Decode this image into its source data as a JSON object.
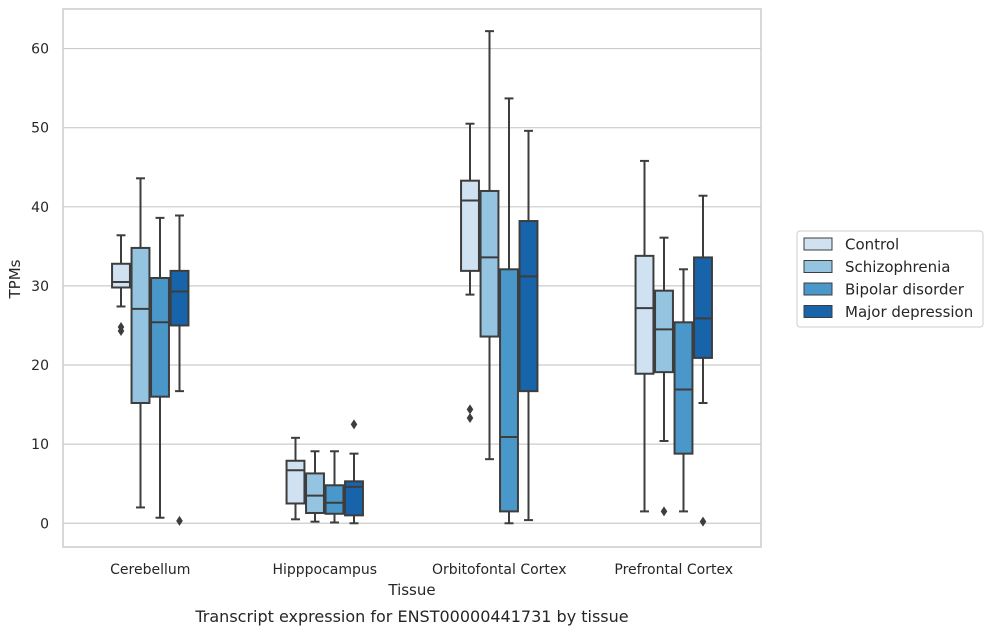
{
  "caption": "Transcript expression for ENST00000441731 by tissue",
  "chart_data": {
    "type": "boxplot",
    "xlabel": "Tissue",
    "ylabel": "TPMs",
    "ylim": [
      -3,
      65
    ],
    "yticks": [
      0,
      10,
      20,
      30,
      40,
      50,
      60
    ],
    "grid": "horizontal",
    "legend_position": "right",
    "categories": [
      "Cerebellum",
      "Hipppocampus",
      "Orbitofontal Cortex",
      "Prefrontal Cortex"
    ],
    "series": [
      {
        "name": "Control",
        "color": "#d0e1f2",
        "boxes": [
          {
            "whislo": 27.4,
            "q1": 29.8,
            "med": 30.5,
            "q3": 32.8,
            "whishi": 36.4,
            "fliers": [
              24.3,
              24.8
            ]
          },
          {
            "whislo": 0.5,
            "q1": 2.5,
            "med": 6.7,
            "q3": 7.9,
            "whishi": 10.8,
            "fliers": []
          },
          {
            "whislo": 28.9,
            "q1": 31.9,
            "med": 40.8,
            "q3": 43.3,
            "whishi": 50.5,
            "fliers": [
              13.3,
              14.4
            ]
          },
          {
            "whislo": 1.5,
            "q1": 18.9,
            "med": 27.2,
            "q3": 33.8,
            "whishi": 45.8,
            "fliers": []
          }
        ]
      },
      {
        "name": "Schizophrenia",
        "color": "#94c4df",
        "boxes": [
          {
            "whislo": 2.0,
            "q1": 15.2,
            "med": 27.1,
            "q3": 34.8,
            "whishi": 43.6,
            "fliers": []
          },
          {
            "whislo": 0.2,
            "q1": 1.3,
            "med": 3.5,
            "q3": 6.3,
            "whishi": 9.1,
            "fliers": []
          },
          {
            "whislo": 8.1,
            "q1": 23.6,
            "med": 33.6,
            "q3": 42.0,
            "whishi": 62.2,
            "fliers": []
          },
          {
            "whislo": 10.4,
            "q1": 19.1,
            "med": 24.5,
            "q3": 29.4,
            "whishi": 36.1,
            "fliers": [
              1.5
            ]
          }
        ]
      },
      {
        "name": "Bipolar disorder",
        "color": "#4a98c9",
        "boxes": [
          {
            "whislo": 0.7,
            "q1": 16.0,
            "med": 25.4,
            "q3": 31.0,
            "whishi": 38.6,
            "fliers": []
          },
          {
            "whislo": 0.1,
            "q1": 1.2,
            "med": 2.6,
            "q3": 4.8,
            "whishi": 9.1,
            "fliers": []
          },
          {
            "whislo": 0.0,
            "q1": 1.5,
            "med": 10.9,
            "q3": 32.1,
            "whishi": 53.7,
            "fliers": []
          },
          {
            "whislo": 1.5,
            "q1": 8.8,
            "med": 16.9,
            "q3": 25.4,
            "whishi": 32.1,
            "fliers": []
          }
        ]
      },
      {
        "name": "Major depression",
        "color": "#1764ab",
        "boxes": [
          {
            "whislo": 16.7,
            "q1": 25.0,
            "med": 29.3,
            "q3": 31.9,
            "whishi": 38.9,
            "fliers": [
              0.3
            ]
          },
          {
            "whislo": 0.0,
            "q1": 1.0,
            "med": 4.6,
            "q3": 5.3,
            "whishi": 8.8,
            "fliers": [
              12.5
            ]
          },
          {
            "whislo": 0.4,
            "q1": 16.7,
            "med": 31.2,
            "q3": 38.2,
            "whishi": 49.6,
            "fliers": []
          },
          {
            "whislo": 15.2,
            "q1": 20.9,
            "med": 25.9,
            "q3": 33.6,
            "whishi": 41.4,
            "fliers": [
              0.2
            ]
          }
        ]
      }
    ]
  }
}
